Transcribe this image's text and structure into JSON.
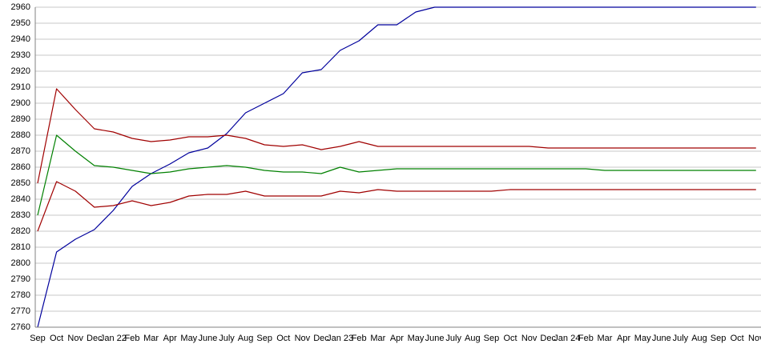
{
  "chart_data": {
    "type": "line",
    "categories": [
      "Sep",
      "Oct",
      "Nov",
      "Dec",
      "Jan 22",
      "Feb",
      "Mar",
      "Apr",
      "May",
      "June",
      "July",
      "Aug",
      "Sep",
      "Oct",
      "Nov",
      "Dec",
      "Jan 23",
      "Feb",
      "Mar",
      "Apr",
      "May",
      "June",
      "July",
      "Aug",
      "Sep",
      "Oct",
      "Nov",
      "Dec",
      "Jan 24",
      "Feb",
      "Mar",
      "Apr",
      "May",
      "June",
      "July",
      "Aug",
      "Sep",
      "Oct",
      "Nov"
    ],
    "series": [
      {
        "color": "#00009c",
        "values": [
          2760,
          2807,
          2815,
          2821,
          2833,
          2848,
          2856,
          2862,
          2869,
          2872,
          2881,
          2894,
          2900,
          2906,
          2919,
          2921,
          2933,
          2939,
          2949,
          2949,
          2957,
          2960,
          2960,
          2960,
          2960,
          2960,
          2960,
          2960,
          2960,
          2960,
          2960,
          2960,
          2960,
          2960,
          2960,
          2960,
          2960,
          2960,
          2960
        ]
      },
      {
        "color": "#a00000",
        "values": [
          2850,
          2909,
          2896,
          2884,
          2882,
          2878,
          2876,
          2877,
          2879,
          2879,
          2880,
          2878,
          2874,
          2873,
          2874,
          2871,
          2873,
          2876,
          2873,
          2873,
          2873,
          2873,
          2873,
          2873,
          2873,
          2873,
          2873,
          2872,
          2872,
          2872,
          2872,
          2872,
          2872,
          2872,
          2872,
          2872,
          2872,
          2872,
          2872
        ]
      },
      {
        "color": "#008000",
        "values": [
          2830,
          2880,
          2870,
          2861,
          2860,
          2858,
          2856,
          2857,
          2859,
          2860,
          2861,
          2860,
          2858,
          2857,
          2857,
          2856,
          2860,
          2857,
          2858,
          2859,
          2859,
          2859,
          2859,
          2859,
          2859,
          2859,
          2859,
          2859,
          2859,
          2859,
          2858,
          2858,
          2858,
          2858,
          2858,
          2858,
          2858,
          2858,
          2858
        ]
      },
      {
        "color": "#a00000",
        "values": [
          2820,
          2851,
          2845,
          2835,
          2836,
          2839,
          2836,
          2838,
          2842,
          2843,
          2843,
          2845,
          2842,
          2842,
          2842,
          2842,
          2845,
          2844,
          2846,
          2845,
          2845,
          2845,
          2845,
          2845,
          2845,
          2846,
          2846,
          2846,
          2846,
          2846,
          2846,
          2846,
          2846,
          2846,
          2846,
          2846,
          2846,
          2846,
          2846
        ]
      }
    ],
    "ylim": [
      2760,
      2960
    ],
    "yticks": [
      2760,
      2770,
      2780,
      2790,
      2800,
      2810,
      2820,
      2830,
      2840,
      2850,
      2860,
      2870,
      2880,
      2890,
      2900,
      2910,
      2920,
      2930,
      2940,
      2950,
      2960
    ],
    "grid": true
  }
}
